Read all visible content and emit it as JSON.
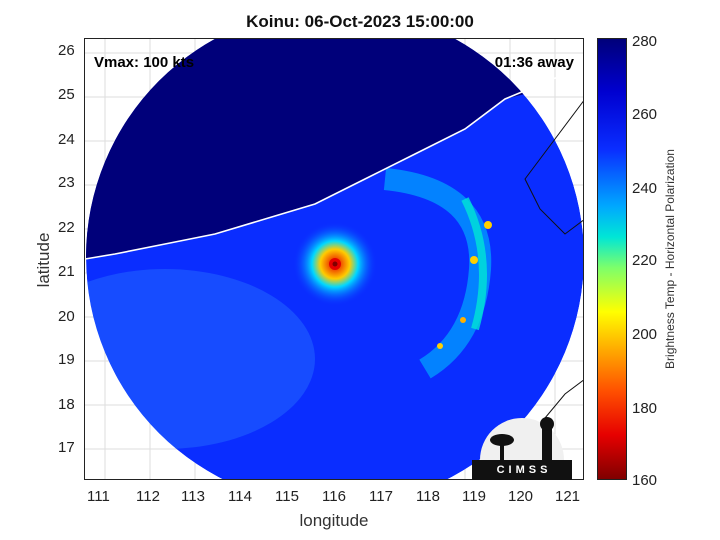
{
  "title": "Koinu: 06-Oct-2023 15:00:00",
  "vmax": "Vmax: 100 kts",
  "time_away": "01:36 away",
  "xlabel": "longitude",
  "ylabel": "latitude",
  "x_ticks": [
    "111",
    "112",
    "113",
    "114",
    "115",
    "116",
    "117",
    "118",
    "119",
    "120",
    "121"
  ],
  "y_ticks": [
    "26",
    "25",
    "24",
    "23",
    "22",
    "21",
    "20",
    "19",
    "18",
    "17"
  ],
  "colorbar": {
    "label": "Brightness Temp - Horizontal Polarization",
    "ticks": [
      "280",
      "260",
      "240",
      "220",
      "200",
      "180",
      "160"
    ],
    "range": [
      160,
      280
    ]
  },
  "logo_text": "CIMSS",
  "colors": {
    "background_cold": "#00007a",
    "scan_blue": "#0a2dff",
    "eye_red": "#e60000",
    "coastline": "#ffffff"
  },
  "storm_center": {
    "lon": 116.0,
    "lat": 21.3
  }
}
